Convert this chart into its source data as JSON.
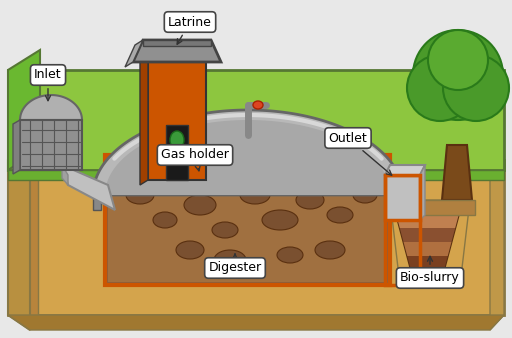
{
  "labels": {
    "inlet": "Inlet",
    "latrine": "Latrine",
    "gas_holder": "Gas holder",
    "outlet": "Outlet",
    "digester": "Digester",
    "bio_slurry": "Bio-slurry"
  },
  "colors": {
    "bg": "#ffffff",
    "sky": "#d8efd8",
    "ground_top": "#8dc63f",
    "ground_sandy": "#d4a44c",
    "ground_dark_side": "#b8843c",
    "digester_brown": "#8b5e3c",
    "digester_fill": "#a07040",
    "digester_orange": "#cc5500",
    "dome_gray": "#b8b8b8",
    "dome_highlight": "#d8d8d8",
    "dome_shadow": "#909090",
    "gas_yellow": "#c8a830",
    "latrine_orange": "#cc5500",
    "latrine_dark": "#a04000",
    "latrine_roof": "#909090",
    "latrine_door": "#000000",
    "inlet_gray": "#909090",
    "inlet_light": "#c0c0c0",
    "tree_green": "#4a9a2a",
    "tree_dark": "#2a7a1a",
    "tree_trunk": "#7a4a1a",
    "outlet_gray": "#909090",
    "pipe_gray": "#808080",
    "slurry_brown": "#7a4a20",
    "slurry_light": "#a06a40",
    "orange_border": "#cc5500"
  },
  "figsize": [
    5.12,
    3.38
  ],
  "dpi": 100
}
